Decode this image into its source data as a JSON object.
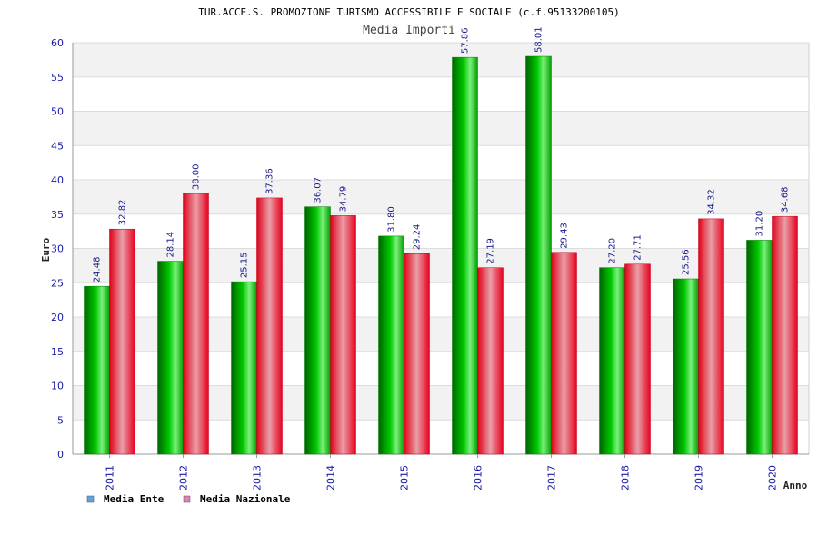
{
  "chart_data": {
    "type": "bar",
    "title": "TUR.ACCE.S. PROMOZIONE TURISMO ACCESSIBILE E SOCIALE (c.f.95133200105)",
    "subtitle": "Media Importi",
    "xlabel": "Anno",
    "ylabel": "Euro",
    "ylim": [
      0,
      60
    ],
    "ytick_step": 5,
    "grid": true,
    "legend_position": "bottom-left",
    "categories": [
      "2011",
      "2012",
      "2013",
      "2014",
      "2015",
      "2016",
      "2017",
      "2018",
      "2019",
      "2020"
    ],
    "series": [
      {
        "name": "Media Ente",
        "color": "#00b400",
        "legend_color": "#5aa5e6",
        "values": [
          24.48,
          28.14,
          25.15,
          36.07,
          31.8,
          57.86,
          58.01,
          27.2,
          25.56,
          31.2
        ],
        "labels": [
          "24.48",
          "28.14",
          "25.15",
          "36.07",
          "31.80",
          "57.86",
          "58.01",
          "27.20",
          "25.56",
          "31.20"
        ]
      },
      {
        "name": "Media Nazionale",
        "color": "#e8001e",
        "legend_color": "#e67dbe",
        "values": [
          32.82,
          38.0,
          37.36,
          34.79,
          29.24,
          27.19,
          29.43,
          27.71,
          34.32,
          34.68
        ],
        "labels": [
          "32.82",
          "38.00",
          "37.36",
          "34.79",
          "29.24",
          "27.19",
          "29.43",
          "27.71",
          "34.32",
          "34.68"
        ]
      }
    ]
  }
}
